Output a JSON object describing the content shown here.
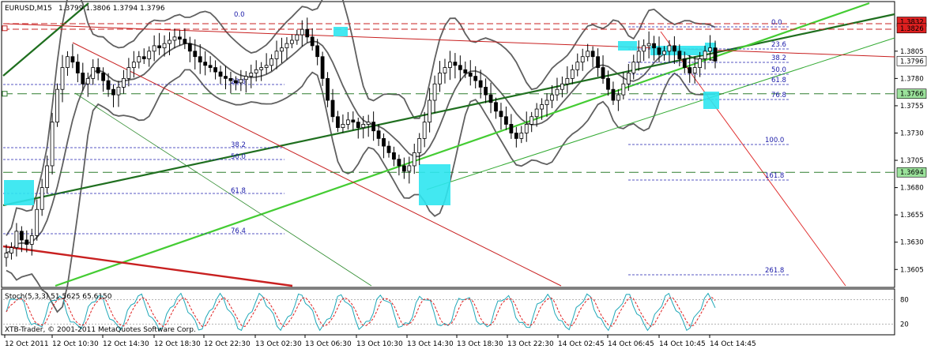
{
  "chart_data": {
    "type": "candlestick",
    "symbol_header": "EURUSD,M15",
    "ohlc": [
      "1.3799",
      "1.3806",
      "1.3794",
      "1.3796"
    ],
    "ylim": [
      1.359,
      1.3849
    ],
    "price_ticks": [
      "1.3805",
      "1.3780",
      "1.3755",
      "1.3730",
      "1.3705",
      "1.3680",
      "1.3655",
      "1.3630",
      "1.3605"
    ],
    "price_tick_values": [
      1.3805,
      1.378,
      1.3755,
      1.373,
      1.3705,
      1.368,
      1.3655,
      1.363,
      1.3605
    ],
    "marked_prices": [
      {
        "label": "1.3832",
        "value": 1.3832,
        "color": "#e02020"
      },
      {
        "label": "1.3826",
        "value": 1.3826,
        "color": "#e02020"
      },
      {
        "label": "1.3796",
        "value": 1.3796,
        "color": "#ffffff"
      },
      {
        "label": "1.3766",
        "value": 1.3766,
        "color": "#9be29b"
      },
      {
        "label": "1.3694",
        "value": 1.3694,
        "color": "#9be29b"
      }
    ],
    "time_labels": [
      "12 Oct 2011",
      "12 Oct 10:30",
      "12 Oct 14:30",
      "12 Oct 18:30",
      "12 Oct 22:30",
      "13 Oct 02:30",
      "13 Oct 06:30",
      "13 Oct 10:30",
      "13 Oct 14:30",
      "13 Oct 18:30",
      "13 Oct 22:30",
      "14 Oct 02:45",
      "14 Oct 06:45",
      "14 Oct 10:45",
      "14 Oct 14:45"
    ],
    "closes": [
      1.362,
      1.3625,
      1.364,
      1.3632,
      1.3628,
      1.3636,
      1.366,
      1.368,
      1.37,
      1.374,
      1.377,
      1.379,
      1.38,
      1.3795,
      1.3785,
      1.3775,
      1.378,
      1.379,
      1.3785,
      1.3778,
      1.377,
      1.3765,
      1.3772,
      1.378,
      1.379,
      1.3795,
      1.38,
      1.3798,
      1.3805,
      1.381,
      1.3808,
      1.3812,
      1.3815,
      1.3818,
      1.3816,
      1.3812,
      1.3805,
      1.38,
      1.3795,
      1.3792,
      1.379,
      1.3786,
      1.3782,
      1.378,
      1.3778,
      1.3776,
      1.3779,
      1.3782,
      1.3785,
      1.3788,
      1.379,
      1.3792,
      1.3798,
      1.3805,
      1.3808,
      1.3812,
      1.3815,
      1.382,
      1.3825,
      1.3818,
      1.381,
      1.38,
      1.378,
      1.376,
      1.3745,
      1.3735,
      1.3738,
      1.3742,
      1.374,
      1.3735,
      1.3738,
      1.374,
      1.3732,
      1.3725,
      1.3718,
      1.3712,
      1.3706,
      1.37,
      1.3695,
      1.37,
      1.3712,
      1.3725,
      1.374,
      1.376,
      1.3775,
      1.3785,
      1.379,
      1.3795,
      1.3792,
      1.3788,
      1.3785,
      1.3782,
      1.3778,
      1.3772,
      1.3765,
      1.3758,
      1.375,
      1.3745,
      1.3738,
      1.373,
      1.3725,
      1.373,
      1.3738,
      1.3745,
      1.3752,
      1.3756,
      1.376,
      1.3765,
      1.377,
      1.3775,
      1.378,
      1.3788,
      1.3795,
      1.38,
      1.3805,
      1.38,
      1.379,
      1.378,
      1.377,
      1.376,
      1.3765,
      1.3775,
      1.3785,
      1.3795,
      1.3805,
      1.381,
      1.3812,
      1.3808,
      1.3802,
      1.3805,
      1.381,
      1.3805,
      1.3798,
      1.379,
      1.3785,
      1.379,
      1.3798,
      1.3805,
      1.3808,
      1.3796
    ],
    "fibonacci_left": [
      "0.0",
      "23.6",
      "38.2",
      "50.0",
      "61.8",
      "76.4"
    ],
    "fibonacci_right": [
      "0.0",
      "23.6",
      "38.2",
      "50.0",
      "61.8",
      "76.8",
      "100.0",
      "161.8",
      "261.8"
    ],
    "indicator": {
      "label": "Stoch(5,3,3) 51.5625 65.6150",
      "ticks": [
        "80",
        "20"
      ],
      "tick_values": [
        80,
        20
      ],
      "ylim": [
        0,
        100
      ]
    },
    "copyright": "XTB-Trader, © 2001-2011 MetaQuotes Software Corp."
  }
}
